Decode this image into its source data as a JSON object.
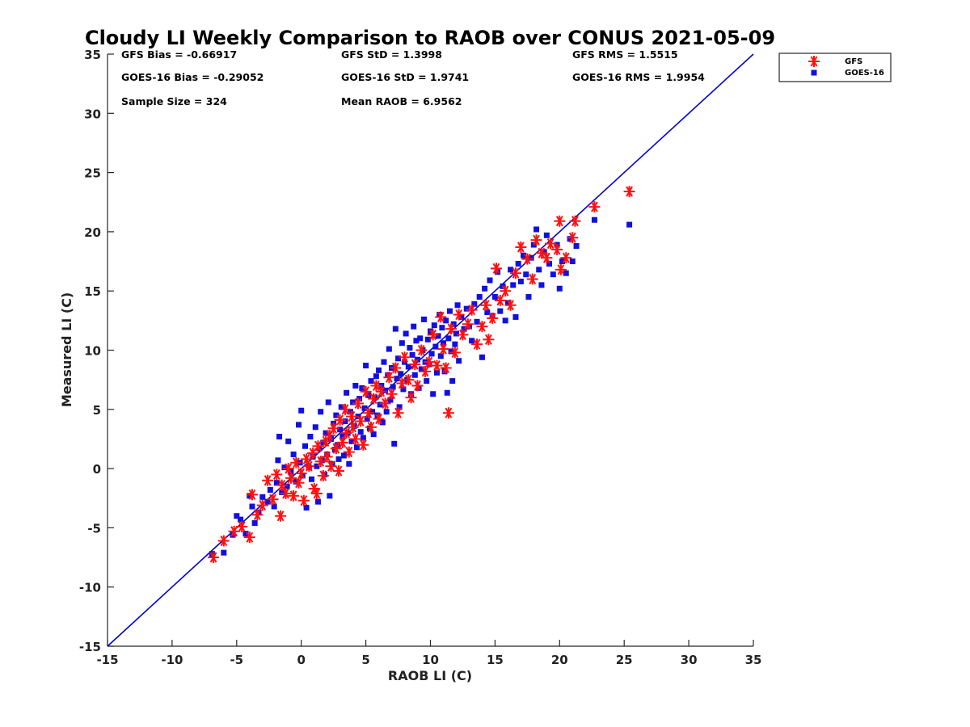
{
  "chart_data": {
    "type": "scatter",
    "title": "Cloudy LI Weekly Comparison to RAOB over CONUS 2021-05-09",
    "xlabel": "RAOB LI (C)",
    "ylabel": "Measured LI (C)",
    "xlim": [
      -15,
      35
    ],
    "ylim": [
      -15,
      35
    ],
    "xticks": [
      -15,
      -10,
      -5,
      0,
      5,
      10,
      15,
      20,
      25,
      30,
      35
    ],
    "yticks": [
      -15,
      -10,
      -5,
      0,
      5,
      10,
      15,
      20,
      25,
      30,
      35
    ],
    "grid": false,
    "legend_position": "top-right outside",
    "reference_line": {
      "x": [
        -15,
        35
      ],
      "y": [
        -15,
        35
      ],
      "color": "#0000cc"
    },
    "stats": [
      "GFS Bias = -0.66917",
      "GFS StD = 1.3998",
      "GFS RMS = 1.5515",
      "GOES-16 Bias = -0.29052",
      "GOES-16 StD = 1.9741",
      "GOES-16 RMS = 1.9954",
      "Sample Size = 324",
      "Mean RAOB = 6.9562"
    ],
    "series": [
      {
        "name": "GFS",
        "marker": "asterisk",
        "color": "#ff1010",
        "points": [
          [
            -6.8,
            -7.5
          ],
          [
            -6.0,
            -6.1
          ],
          [
            -5.2,
            -5.3
          ],
          [
            -4.6,
            -4.9
          ],
          [
            -4.0,
            -5.8
          ],
          [
            -3.8,
            -2.2
          ],
          [
            -3.4,
            -3.9
          ],
          [
            -3.0,
            -3.1
          ],
          [
            -2.6,
            -1.0
          ],
          [
            -2.2,
            -2.6
          ],
          [
            -1.9,
            -0.5
          ],
          [
            -1.6,
            -4.0
          ],
          [
            -1.5,
            -1.4
          ],
          [
            -1.2,
            -2.1
          ],
          [
            -1.0,
            0.0
          ],
          [
            -0.8,
            -0.8
          ],
          [
            -0.6,
            -2.3
          ],
          [
            -0.4,
            0.5
          ],
          [
            -0.2,
            -1.2
          ],
          [
            0.0,
            -0.4
          ],
          [
            0.2,
            -2.7
          ],
          [
            0.4,
            0.8
          ],
          [
            0.6,
            0.2
          ],
          [
            0.9,
            1.3
          ],
          [
            1.0,
            -1.7
          ],
          [
            1.2,
            -2.1
          ],
          [
            1.3,
            1.9
          ],
          [
            1.5,
            0.6
          ],
          [
            1.7,
            -0.6
          ],
          [
            1.9,
            2.3
          ],
          [
            2.0,
            1.0
          ],
          [
            2.2,
            2.8
          ],
          [
            2.3,
            0.2
          ],
          [
            2.5,
            3.4
          ],
          [
            2.7,
            1.7
          ],
          [
            2.9,
            -0.2
          ],
          [
            3.0,
            4.1
          ],
          [
            3.2,
            2.2
          ],
          [
            3.4,
            5.0
          ],
          [
            3.5,
            3.0
          ],
          [
            3.7,
            1.4
          ],
          [
            3.9,
            4.4
          ],
          [
            4.0,
            3.5
          ],
          [
            4.2,
            2.5
          ],
          [
            4.4,
            5.5
          ],
          [
            4.6,
            4.0
          ],
          [
            4.8,
            2.0
          ],
          [
            5.0,
            6.5
          ],
          [
            5.2,
            4.7
          ],
          [
            5.4,
            3.5
          ],
          [
            5.6,
            5.9
          ],
          [
            5.8,
            7.0
          ],
          [
            6.0,
            4.2
          ],
          [
            6.2,
            6.5
          ],
          [
            6.5,
            5.5
          ],
          [
            6.8,
            7.7
          ],
          [
            7.0,
            6.3
          ],
          [
            7.3,
            8.5
          ],
          [
            7.5,
            4.7
          ],
          [
            7.8,
            7.2
          ],
          [
            8.0,
            9.4
          ],
          [
            8.3,
            7.5
          ],
          [
            8.5,
            6.0
          ],
          [
            8.8,
            8.8
          ],
          [
            9.0,
            7.0
          ],
          [
            9.3,
            10.0
          ],
          [
            9.6,
            8.2
          ],
          [
            9.9,
            9.0
          ],
          [
            10.2,
            11.3
          ],
          [
            10.5,
            8.7
          ],
          [
            10.8,
            12.8
          ],
          [
            11.0,
            10.1
          ],
          [
            11.2,
            8.5
          ],
          [
            11.4,
            4.7
          ],
          [
            11.6,
            11.8
          ],
          [
            11.9,
            9.8
          ],
          [
            12.2,
            13.0
          ],
          [
            12.5,
            11.3
          ],
          [
            12.9,
            12.2
          ],
          [
            13.2,
            13.4
          ],
          [
            13.6,
            10.5
          ],
          [
            14.0,
            12.0
          ],
          [
            14.3,
            13.8
          ],
          [
            14.5,
            10.9
          ],
          [
            14.8,
            12.7
          ],
          [
            15.1,
            16.9
          ],
          [
            15.4,
            14.2
          ],
          [
            15.8,
            15.0
          ],
          [
            16.2,
            13.8
          ],
          [
            16.6,
            16.5
          ],
          [
            17.0,
            18.7
          ],
          [
            17.5,
            17.7
          ],
          [
            17.9,
            16.0
          ],
          [
            18.2,
            19.3
          ],
          [
            18.6,
            18.2
          ],
          [
            19.0,
            17.8
          ],
          [
            19.3,
            19.0
          ],
          [
            19.8,
            18.5
          ],
          [
            20.0,
            20.9
          ],
          [
            20.1,
            16.8
          ],
          [
            20.5,
            17.8
          ],
          [
            21.0,
            19.5
          ],
          [
            21.2,
            20.9
          ],
          [
            22.7,
            22.1
          ],
          [
            25.4,
            23.4
          ]
        ]
      },
      {
        "name": "GOES-16",
        "marker": "square",
        "color": "#1010e0",
        "points": [
          [
            -6.9,
            -7.2
          ],
          [
            -6.0,
            -7.1
          ],
          [
            -5.3,
            -5.6
          ],
          [
            -5.0,
            -4.0
          ],
          [
            -4.7,
            -4.3
          ],
          [
            -4.3,
            -5.5
          ],
          [
            -4.0,
            -2.3
          ],
          [
            -3.8,
            -3.2
          ],
          [
            -3.6,
            -4.6
          ],
          [
            -3.3,
            -3.7
          ],
          [
            -3.0,
            -2.4
          ],
          [
            -2.6,
            -2.8
          ],
          [
            -2.4,
            -1.8
          ],
          [
            -2.1,
            -3.2
          ],
          [
            -1.9,
            -1.2
          ],
          [
            -1.8,
            0.7
          ],
          [
            -1.7,
            2.7
          ],
          [
            -1.5,
            -2.0
          ],
          [
            -1.3,
            0.1
          ],
          [
            -1.1,
            -1.5
          ],
          [
            -1.0,
            2.3
          ],
          [
            -0.8,
            -0.3
          ],
          [
            -0.6,
            1.2
          ],
          [
            -0.4,
            -1.1
          ],
          [
            -0.2,
            3.7
          ],
          [
            -0.1,
            0.5
          ],
          [
            0.0,
            4.9
          ],
          [
            0.1,
            -0.6
          ],
          [
            0.3,
            1.9
          ],
          [
            0.4,
            -3.3
          ],
          [
            0.6,
            0.1
          ],
          [
            0.7,
            2.7
          ],
          [
            0.8,
            -0.9
          ],
          [
            0.9,
            1.0
          ],
          [
            1.1,
            3.5
          ],
          [
            1.2,
            0.2
          ],
          [
            1.3,
            -2.8
          ],
          [
            1.4,
            1.7
          ],
          [
            1.5,
            4.8
          ],
          [
            1.6,
            0.7
          ],
          [
            1.7,
            2.2
          ],
          [
            1.8,
            -0.5
          ],
          [
            1.9,
            3.0
          ],
          [
            2.0,
            1.2
          ],
          [
            2.1,
            5.6
          ],
          [
            2.2,
            -2.3
          ],
          [
            2.3,
            2.5
          ],
          [
            2.4,
            0.4
          ],
          [
            2.5,
            3.8
          ],
          [
            2.6,
            1.6
          ],
          [
            2.7,
            4.5
          ],
          [
            2.8,
            2.0
          ],
          [
            2.9,
            0.8
          ],
          [
            3.0,
            3.3
          ],
          [
            3.1,
            5.2
          ],
          [
            3.2,
            2.7
          ],
          [
            3.3,
            1.1
          ],
          [
            3.4,
            4.0
          ],
          [
            3.5,
            6.4
          ],
          [
            3.6,
            3.0
          ],
          [
            3.7,
            0.4
          ],
          [
            3.8,
            4.8
          ],
          [
            3.9,
            2.3
          ],
          [
            4.0,
            5.6
          ],
          [
            4.1,
            3.6
          ],
          [
            4.2,
            7.0
          ],
          [
            4.3,
            1.8
          ],
          [
            4.4,
            4.4
          ],
          [
            4.5,
            5.9
          ],
          [
            4.6,
            3.1
          ],
          [
            4.7,
            6.8
          ],
          [
            4.8,
            2.6
          ],
          [
            4.9,
            5.1
          ],
          [
            5.0,
            8.7
          ],
          [
            5.1,
            4.2
          ],
          [
            5.2,
            6.2
          ],
          [
            5.3,
            3.4
          ],
          [
            5.4,
            7.4
          ],
          [
            5.5,
            4.8
          ],
          [
            5.6,
            2.9
          ],
          [
            5.7,
            6.0
          ],
          [
            5.8,
            7.8
          ],
          [
            5.9,
            4.5
          ],
          [
            6.0,
            8.3
          ],
          [
            6.1,
            5.4
          ],
          [
            6.2,
            7.0
          ],
          [
            6.3,
            3.9
          ],
          [
            6.4,
            9.0
          ],
          [
            6.5,
            6.6
          ],
          [
            6.6,
            4.8
          ],
          [
            6.7,
            7.9
          ],
          [
            6.8,
            10.1
          ],
          [
            6.9,
            5.8
          ],
          [
            7.0,
            8.5
          ],
          [
            7.1,
            6.9
          ],
          [
            7.2,
            2.1
          ],
          [
            7.3,
            11.8
          ],
          [
            7.4,
            7.6
          ],
          [
            7.5,
            9.3
          ],
          [
            7.6,
            5.2
          ],
          [
            7.7,
            8.0
          ],
          [
            7.8,
            10.6
          ],
          [
            7.9,
            6.7
          ],
          [
            8.0,
            9.0
          ],
          [
            8.1,
            11.4
          ],
          [
            8.2,
            7.5
          ],
          [
            8.3,
            8.6
          ],
          [
            8.4,
            10.2
          ],
          [
            8.5,
            6.3
          ],
          [
            8.6,
            9.6
          ],
          [
            8.7,
            12.0
          ],
          [
            8.8,
            7.9
          ],
          [
            8.9,
            10.8
          ],
          [
            9.0,
            9.2
          ],
          [
            9.1,
            6.8
          ],
          [
            9.2,
            11.0
          ],
          [
            9.3,
            8.4
          ],
          [
            9.4,
            10.0
          ],
          [
            9.5,
            12.6
          ],
          [
            9.6,
            9.0
          ],
          [
            9.7,
            7.4
          ],
          [
            9.8,
            10.9
          ],
          [
            9.9,
            8.8
          ],
          [
            10.0,
            11.6
          ],
          [
            10.1,
            9.7
          ],
          [
            10.2,
            6.3
          ],
          [
            10.3,
            12.1
          ],
          [
            10.4,
            10.3
          ],
          [
            10.5,
            8.1
          ],
          [
            10.6,
            11.2
          ],
          [
            10.7,
            13.0
          ],
          [
            10.8,
            9.5
          ],
          [
            10.9,
            11.9
          ],
          [
            11.0,
            10.6
          ],
          [
            11.1,
            8.2
          ],
          [
            11.2,
            12.5
          ],
          [
            11.3,
            6.4
          ],
          [
            11.4,
            11.0
          ],
          [
            11.5,
            13.3
          ],
          [
            11.6,
            9.9
          ],
          [
            11.7,
            7.4
          ],
          [
            11.8,
            12.2
          ],
          [
            11.9,
            10.5
          ],
          [
            12.0,
            11.4
          ],
          [
            12.1,
            13.8
          ],
          [
            12.2,
            9.1
          ],
          [
            12.4,
            12.8
          ],
          [
            12.6,
            11.8
          ],
          [
            12.8,
            13.5
          ],
          [
            13.0,
            12.0
          ],
          [
            13.2,
            10.8
          ],
          [
            13.4,
            13.9
          ],
          [
            13.6,
            12.4
          ],
          [
            13.8,
            14.5
          ],
          [
            14.0,
            9.4
          ],
          [
            14.2,
            15.2
          ],
          [
            14.4,
            13.2
          ],
          [
            14.6,
            15.9
          ],
          [
            14.8,
            12.9
          ],
          [
            15.0,
            14.5
          ],
          [
            15.2,
            16.6
          ],
          [
            15.4,
            13.3
          ],
          [
            15.6,
            15.4
          ],
          [
            15.8,
            12.5
          ],
          [
            16.0,
            14.0
          ],
          [
            16.2,
            16.8
          ],
          [
            16.4,
            15.5
          ],
          [
            16.6,
            12.8
          ],
          [
            16.8,
            17.3
          ],
          [
            17.0,
            15.8
          ],
          [
            17.2,
            18.0
          ],
          [
            17.4,
            16.4
          ],
          [
            17.6,
            14.5
          ],
          [
            17.8,
            17.8
          ],
          [
            18.0,
            18.9
          ],
          [
            18.2,
            20.2
          ],
          [
            18.4,
            16.8
          ],
          [
            18.6,
            15.5
          ],
          [
            18.8,
            18.3
          ],
          [
            19.0,
            19.7
          ],
          [
            19.2,
            17.3
          ],
          [
            19.5,
            16.4
          ],
          [
            19.8,
            18.9
          ],
          [
            20.0,
            15.2
          ],
          [
            20.2,
            17.5
          ],
          [
            20.5,
            16.5
          ],
          [
            20.8,
            19.4
          ],
          [
            21.0,
            17.5
          ],
          [
            21.3,
            18.8
          ],
          [
            22.7,
            21.0
          ],
          [
            25.4,
            20.6
          ]
        ]
      }
    ]
  }
}
